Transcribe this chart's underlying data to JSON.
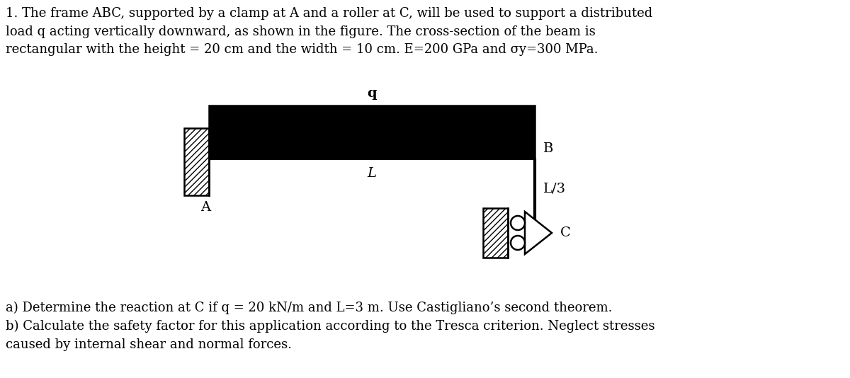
{
  "title_text": "1. The frame ABC, supported by a clamp at A and a roller at C, will be used to support a distributed\nload q acting vertically downward, as shown in the figure. The cross-section of the beam is\nrectangular with the height = 20 cm and the width = 10 cm. E=200 GPa and σy=300 MPa.",
  "footer_text": "a) Determine the reaction at C if q = 20 kN/m and L=3 m. Use Castigliano’s second theorem.\nb) Calculate the safety factor for this application according to the Tresca criterion. Neglect stresses\ncaused by internal shear and normal forces.",
  "bg_color": "#ffffff",
  "text_color": "#000000",
  "beam_color": "#000000",
  "label_q": "q",
  "label_L": "L",
  "label_A": "A",
  "label_B": "B",
  "label_L3": "L/3",
  "label_C": "C",
  "title_fontsize": 13.0,
  "footer_fontsize": 13.0,
  "label_fontsize": 13,
  "fig_width": 12.0,
  "fig_height": 5.34,
  "dpi": 100
}
